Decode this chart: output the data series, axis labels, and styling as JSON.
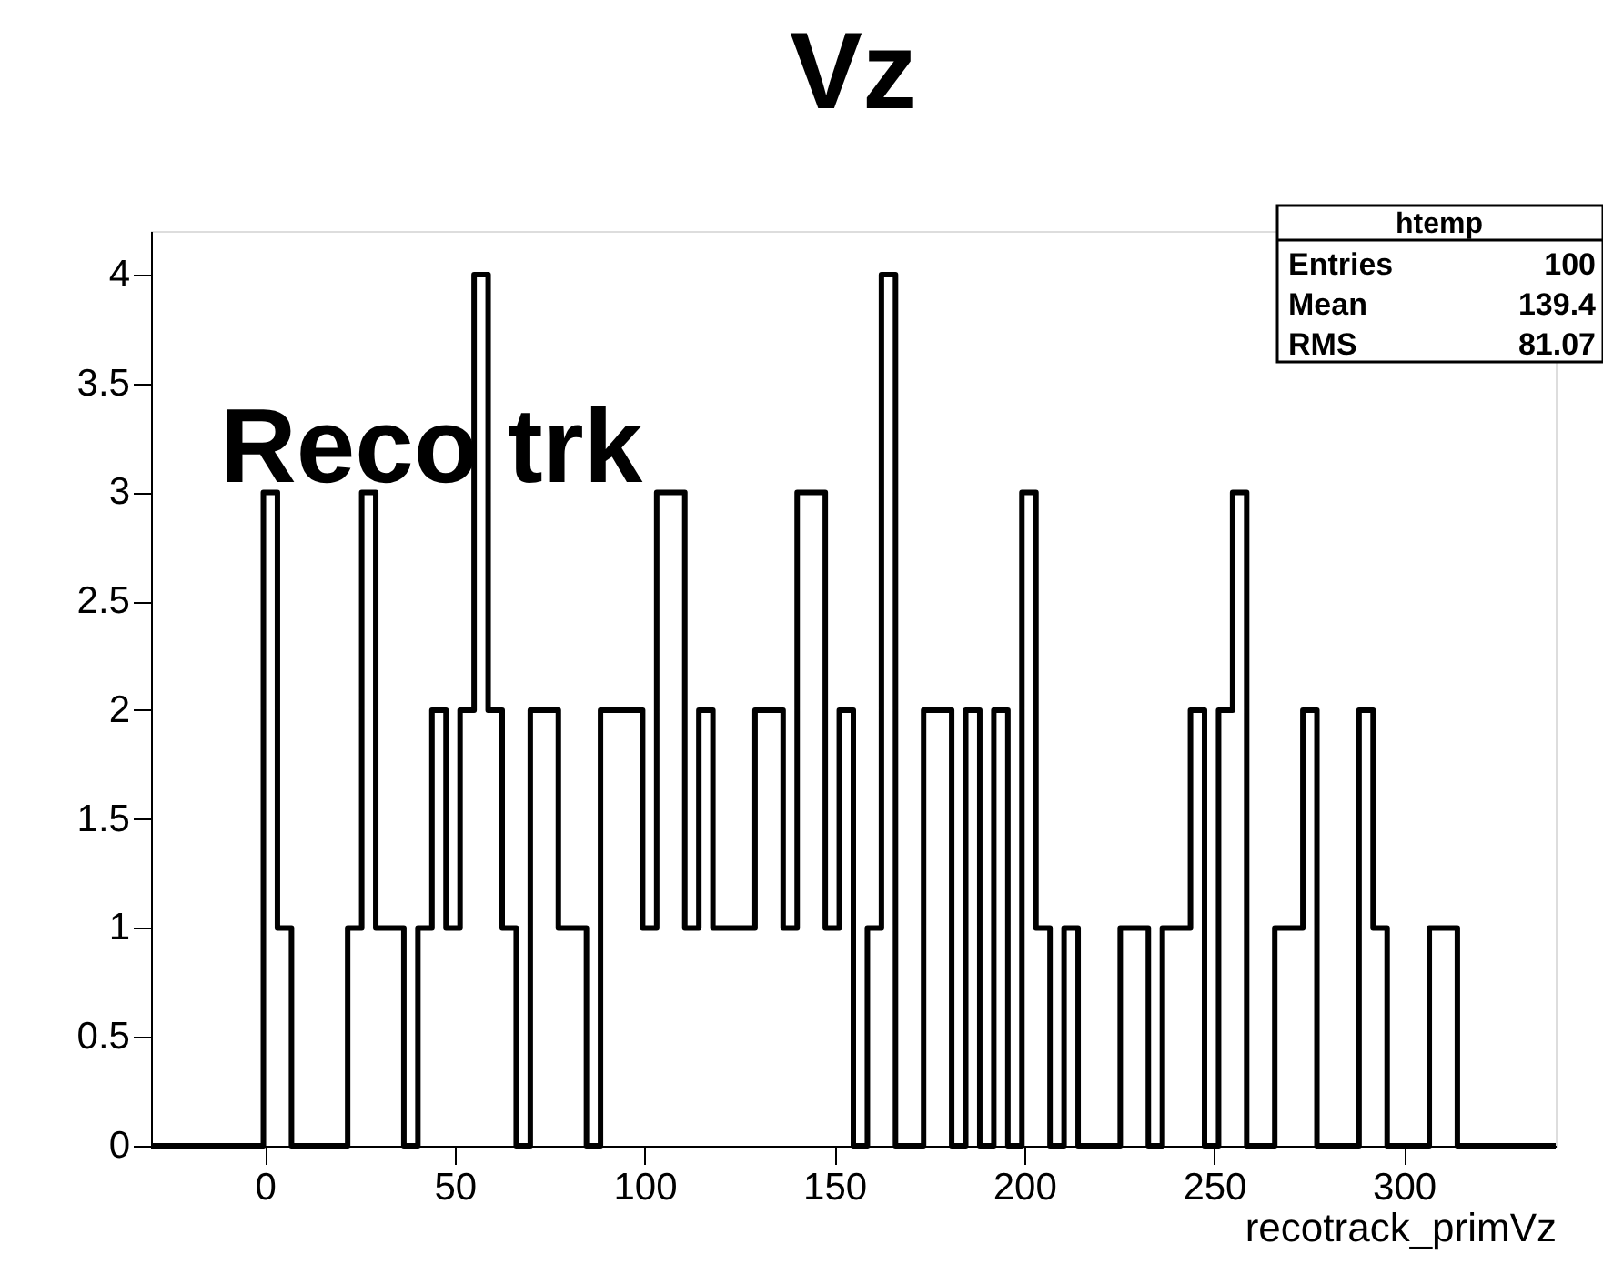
{
  "chart_data": {
    "type": "histogram",
    "title": "Vz",
    "xlabel": "recotrack_primVz",
    "annotations": [
      "Reco trk",
      "htemp",
      "Entries",
      "100",
      "Mean",
      "139.4",
      "RMS",
      "81.07"
    ],
    "bins": [
      -30,
      -26.3,
      -22.6,
      -18.9,
      -15.2,
      -11.5,
      -7.8,
      -4.1,
      -0.4,
      3.3,
      7,
      10.7,
      14.4,
      18.1,
      21.8,
      25.5,
      29.2,
      32.9,
      36.6,
      40.3,
      44,
      47.7,
      51.4,
      55.1,
      58.8,
      62.5,
      66.2,
      69.9,
      73.6,
      77.3,
      81,
      84.7,
      88.4,
      92.1,
      95.8,
      99.5,
      103.2,
      106.9,
      110.6,
      114.3,
      118,
      121.7,
      125.4,
      129.1,
      132.8,
      136.5,
      140.2,
      143.9,
      147.6,
      151.3,
      155,
      158.7,
      162.4,
      166.1,
      169.8,
      173.5,
      177.2,
      180.9,
      184.6,
      188.3,
      192,
      195.7,
      199.4,
      203.1,
      206.8,
      210.5,
      214.2,
      217.9,
      221.6,
      225.3,
      229,
      232.7,
      236.4,
      240.1,
      243.8,
      247.5,
      251.2,
      254.9,
      258.6,
      262.3,
      266,
      269.7,
      273.4,
      277.1,
      280.8,
      284.5,
      288.2,
      291.9,
      295.6,
      299.3,
      303,
      306.7,
      310.4,
      314.1,
      317.8,
      321.5,
      325.2,
      328.9,
      332.6,
      336.3,
      340
    ],
    "values": [
      0,
      0,
      0,
      0,
      0,
      0,
      0,
      0,
      3,
      1,
      0,
      0,
      0,
      0,
      1,
      3,
      1,
      1,
      0,
      1,
      2,
      1,
      2,
      4,
      2,
      1,
      0,
      2,
      2,
      1,
      1,
      0,
      2,
      2,
      2,
      1,
      3,
      3,
      1,
      2,
      1,
      1,
      1,
      2,
      2,
      1,
      3,
      3,
      1,
      2,
      0,
      1,
      4,
      0,
      0,
      2,
      2,
      0,
      2,
      0,
      2,
      0,
      3,
      1,
      0,
      1,
      0,
      0,
      0,
      1,
      1,
      0,
      1,
      1,
      2,
      0,
      2,
      3,
      0,
      0,
      1,
      1,
      2,
      0,
      0,
      0,
      2,
      1,
      0,
      0,
      0,
      1,
      1,
      0,
      0,
      0,
      0,
      0,
      0,
      0
    ],
    "color": "#000000",
    "xlim": [
      -30,
      340
    ],
    "ylim": [
      0,
      4.2
    ],
    "xticks": [
      0,
      50,
      100,
      150,
      200,
      250,
      300
    ],
    "yticks": [
      0,
      0.5,
      1,
      1.5,
      2,
      2.5,
      3,
      3.5,
      4
    ],
    "grid": false
  }
}
